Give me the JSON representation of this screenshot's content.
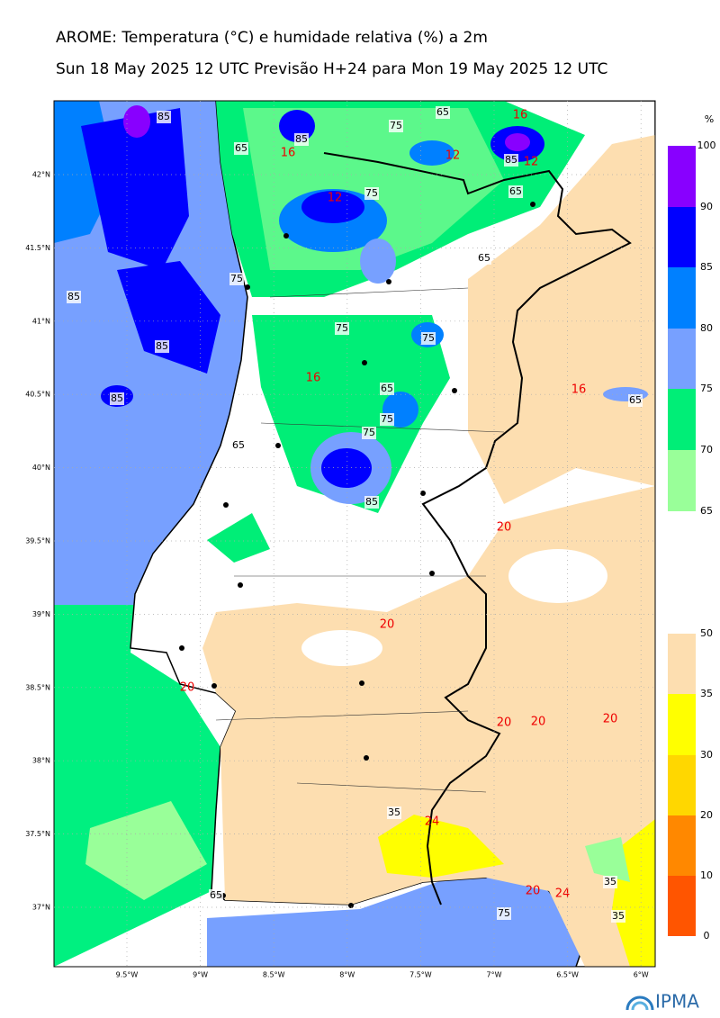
{
  "header": {
    "title": "AROME: Temperatura (°C) e humidade relativa (%) a 2m",
    "subtitle": "Sun 18 May 2025 12 UTC Previsão H+24 para Mon 19 May 2025 12 UTC"
  },
  "map": {
    "lat_labels": [
      "42°N",
      "41.5°N",
      "41°N",
      "40.5°N",
      "40°N",
      "39.5°N",
      "39°N",
      "38.5°N",
      "38°N",
      "37.5°N",
      "37°N"
    ],
    "lon_labels": [
      "9.5°W",
      "9°W",
      "8.5°W",
      "8°W",
      "7.5°W",
      "7°W",
      "6.5°W",
      "6°W"
    ],
    "humidity_contour_labels": [
      85,
      85,
      65,
      75,
      65,
      85,
      75,
      65,
      65,
      85,
      85,
      85,
      75,
      75,
      75,
      65,
      65,
      75,
      75,
      65,
      85,
      35,
      35,
      75,
      35,
      65
    ],
    "temperature_contour_labels": [
      16,
      16,
      12,
      12,
      12,
      16,
      16,
      20,
      20,
      20,
      20,
      20,
      20,
      24,
      20,
      24
    ]
  },
  "humidity_colorbar": {
    "unit": "%",
    "ticks": [
      100,
      90,
      85,
      80,
      75,
      70,
      65
    ]
  },
  "temperature_colorbar": {
    "ticks": [
      50,
      35,
      30,
      20,
      10,
      0
    ]
  },
  "logo": "IPMA"
}
